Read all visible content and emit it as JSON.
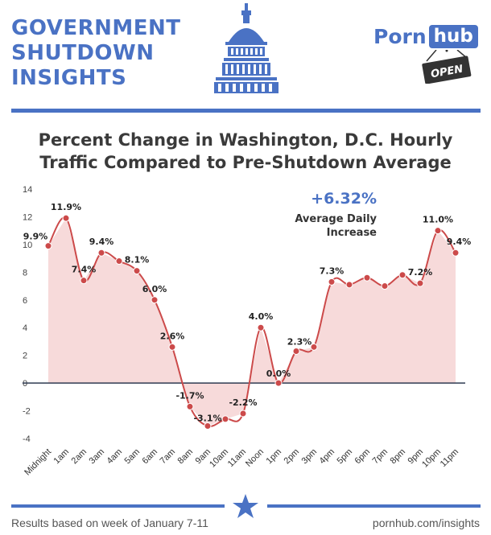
{
  "header": {
    "title_lines": [
      "GOVERNMENT",
      "SHUTDOWN",
      "INSIGHTS"
    ],
    "logo_part1": "Porn",
    "logo_part2": "hub",
    "sign_text": "OPEN",
    "capitol_icon": "capitol-dome-icon"
  },
  "annotation": {
    "value": "+6.32%",
    "label_lines": [
      "Average Daily",
      "Increase"
    ]
  },
  "footer": {
    "left": "Results based on week of January 7-11",
    "right": "pornhub.com/insights",
    "star_icon": "star-icon"
  },
  "colors": {
    "accent": "#4a72c4",
    "line": "#cc4a4a",
    "fill": "#f7dada",
    "text": "#3a3a3a"
  },
  "chart_data": {
    "type": "area",
    "title_lines": [
      "Percent Change in Washington, D.C. Hourly",
      "Traffic Compared to Pre-Shutdown Average"
    ],
    "xlabel": "",
    "ylabel": "",
    "ylim": [
      -4,
      14
    ],
    "yticks": [
      -4,
      -2,
      0,
      2,
      4,
      6,
      8,
      10,
      12,
      14
    ],
    "grid": false,
    "categories": [
      "Midnight",
      "1am",
      "2am",
      "3am",
      "4am",
      "5am",
      "6am",
      "7am",
      "8am",
      "9am",
      "10am",
      "11am",
      "Noon",
      "1pm",
      "2pm",
      "3pm",
      "4pm",
      "5pm",
      "6pm",
      "7pm",
      "8pm",
      "9pm",
      "10pm",
      "11pm"
    ],
    "values": [
      9.9,
      11.9,
      7.4,
      9.4,
      8.8,
      8.1,
      6.0,
      2.6,
      -1.7,
      -3.1,
      -2.6,
      -2.2,
      4.0,
      0.0,
      2.3,
      2.6,
      7.3,
      7.1,
      7.6,
      7.0,
      7.8,
      7.2,
      11.0,
      9.4
    ],
    "point_labels": [
      "9.9%",
      "11.9%",
      "7.4%",
      "9.4%",
      "",
      "8.1%",
      "6.0%",
      "2.6%",
      "-1.7%",
      "-3.1%",
      "",
      "-2.2%",
      "4.0%",
      "0.0%",
      "2.3%",
      "",
      "7.3%",
      "",
      "",
      "",
      "",
      "7.2%",
      "11.0%",
      "9.4%"
    ]
  }
}
